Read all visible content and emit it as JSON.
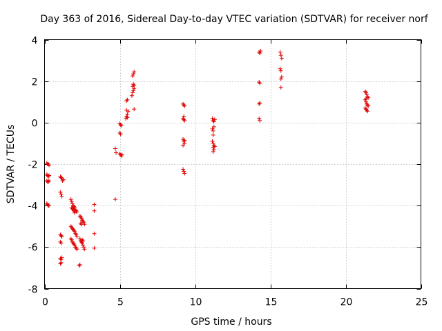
{
  "chart_data": {
    "type": "scatter",
    "title": "Day 363 of 2016, Sidereal Day-to-day VTEC variation (SDTVAR) for receiver norf",
    "xlabel": "GPS time / hours",
    "ylabel": "SDTVAR / TECUs",
    "xlim": [
      0,
      25
    ],
    "ylim": [
      -8,
      4
    ],
    "xticks": [
      0,
      5,
      10,
      15,
      20,
      25
    ],
    "xtick_labels": [
      "0",
      "5",
      "10",
      "15",
      "20",
      "25"
    ],
    "yticks": [
      -8,
      -6,
      -4,
      -2,
      0,
      2,
      4
    ],
    "ytick_labels": [
      "-8",
      "-6",
      "-4",
      "-2",
      "0",
      "2",
      "4"
    ],
    "grid": true,
    "marker": "+",
    "color": "#e00000",
    "series": [
      {
        "name": "SDTVAR",
        "points": [
          [
            0.15,
            -1.95
          ],
          [
            0.2,
            -2.0
          ],
          [
            0.25,
            -2.0
          ],
          [
            0.3,
            -2.05
          ],
          [
            0.15,
            -2.5
          ],
          [
            0.2,
            -2.55
          ],
          [
            0.25,
            -2.6
          ],
          [
            0.3,
            -2.55
          ],
          [
            0.15,
            -2.8
          ],
          [
            0.2,
            -2.85
          ],
          [
            0.25,
            -2.85
          ],
          [
            0.3,
            -2.8
          ],
          [
            0.15,
            -3.9
          ],
          [
            0.2,
            -3.95
          ],
          [
            0.25,
            -4.0
          ],
          [
            0.3,
            -4.0
          ],
          [
            1.05,
            -2.6
          ],
          [
            1.1,
            -2.65
          ],
          [
            1.15,
            -2.7
          ],
          [
            1.2,
            -2.8
          ],
          [
            1.25,
            -2.75
          ],
          [
            1.05,
            -3.35
          ],
          [
            1.1,
            -3.45
          ],
          [
            1.15,
            -3.55
          ],
          [
            1.05,
            -5.4
          ],
          [
            1.1,
            -5.45
          ],
          [
            1.15,
            -5.5
          ],
          [
            1.05,
            -5.75
          ],
          [
            1.1,
            -5.8
          ],
          [
            1.05,
            -6.55
          ],
          [
            1.1,
            -6.6
          ],
          [
            1.15,
            -6.5
          ],
          [
            1.05,
            -6.8
          ],
          [
            1.1,
            -6.75
          ],
          [
            1.75,
            -3.7
          ],
          [
            1.8,
            -3.8
          ],
          [
            1.85,
            -3.9
          ],
          [
            1.9,
            -4.0
          ],
          [
            1.95,
            -4.05
          ],
          [
            2.0,
            -4.1
          ],
          [
            2.05,
            -4.2
          ],
          [
            2.1,
            -4.25
          ],
          [
            2.15,
            -4.3
          ],
          [
            1.8,
            -4.1
          ],
          [
            1.85,
            -4.15
          ],
          [
            1.9,
            -4.2
          ],
          [
            1.95,
            -4.25
          ],
          [
            2.0,
            -4.35
          ],
          [
            1.75,
            -5.0
          ],
          [
            1.8,
            -5.05
          ],
          [
            1.85,
            -5.1
          ],
          [
            1.9,
            -5.15
          ],
          [
            1.95,
            -5.2
          ],
          [
            2.0,
            -5.25
          ],
          [
            2.05,
            -5.35
          ],
          [
            2.1,
            -5.4
          ],
          [
            2.15,
            -5.5
          ],
          [
            1.75,
            -5.6
          ],
          [
            1.8,
            -5.65
          ],
          [
            1.85,
            -5.75
          ],
          [
            1.9,
            -5.8
          ],
          [
            1.95,
            -5.85
          ],
          [
            2.0,
            -5.9
          ],
          [
            2.05,
            -6.0
          ],
          [
            2.1,
            -6.05
          ],
          [
            2.15,
            -6.1
          ],
          [
            2.3,
            -6.9
          ],
          [
            2.35,
            -6.85
          ],
          [
            2.35,
            -4.5
          ],
          [
            2.4,
            -4.55
          ],
          [
            2.45,
            -4.6
          ],
          [
            2.5,
            -4.7
          ],
          [
            2.55,
            -4.75
          ],
          [
            2.6,
            -4.8
          ],
          [
            2.65,
            -4.9
          ],
          [
            2.4,
            -4.85
          ],
          [
            2.45,
            -4.9
          ],
          [
            2.35,
            -5.6
          ],
          [
            2.4,
            -5.7
          ],
          [
            2.45,
            -5.75
          ],
          [
            2.5,
            -5.8
          ],
          [
            2.55,
            -5.9
          ],
          [
            2.6,
            -6.0
          ],
          [
            2.65,
            -6.1
          ],
          [
            2.5,
            -5.65
          ],
          [
            2.55,
            -5.7
          ],
          [
            3.3,
            -3.95
          ],
          [
            3.3,
            -4.25
          ],
          [
            3.3,
            -5.35
          ],
          [
            3.3,
            -6.05
          ],
          [
            4.7,
            -1.25
          ],
          [
            4.75,
            -1.45
          ],
          [
            4.7,
            -3.7
          ],
          [
            5.0,
            -1.5
          ],
          [
            5.05,
            -1.55
          ],
          [
            5.1,
            -1.6
          ],
          [
            5.15,
            -1.55
          ],
          [
            5.0,
            -0.05
          ],
          [
            5.05,
            -0.1
          ],
          [
            5.1,
            -0.15
          ],
          [
            5.0,
            -0.5
          ],
          [
            5.05,
            -0.55
          ],
          [
            5.4,
            0.2
          ],
          [
            5.45,
            0.3
          ],
          [
            5.5,
            0.4
          ],
          [
            5.55,
            0.55
          ],
          [
            5.45,
            0.6
          ],
          [
            5.5,
            0.25
          ],
          [
            5.45,
            1.05
          ],
          [
            5.5,
            1.1
          ],
          [
            5.8,
            1.3
          ],
          [
            5.85,
            1.45
          ],
          [
            5.9,
            1.55
          ],
          [
            5.95,
            1.65
          ],
          [
            5.85,
            1.75
          ],
          [
            5.9,
            1.85
          ],
          [
            5.95,
            1.8
          ],
          [
            5.85,
            2.25
          ],
          [
            5.9,
            2.35
          ],
          [
            5.95,
            2.45
          ],
          [
            5.95,
            0.65
          ],
          [
            9.2,
            0.9
          ],
          [
            9.25,
            0.85
          ],
          [
            9.3,
            0.8
          ],
          [
            9.2,
            0.2
          ],
          [
            9.25,
            0.15
          ],
          [
            9.3,
            0.1
          ],
          [
            9.25,
            0.3
          ],
          [
            9.2,
            -0.8
          ],
          [
            9.25,
            -0.9
          ],
          [
            9.3,
            -1.0
          ],
          [
            9.2,
            -1.1
          ],
          [
            9.3,
            -0.85
          ],
          [
            9.2,
            -2.25
          ],
          [
            9.25,
            -2.35
          ],
          [
            9.3,
            -2.45
          ],
          [
            11.15,
            0.2
          ],
          [
            11.2,
            0.1
          ],
          [
            11.25,
            0.05
          ],
          [
            11.3,
            0.15
          ],
          [
            11.15,
            -0.3
          ],
          [
            11.2,
            -0.4
          ],
          [
            11.25,
            -0.2
          ],
          [
            11.2,
            -0.6
          ],
          [
            11.15,
            -0.9
          ],
          [
            11.2,
            -1.0
          ],
          [
            11.25,
            -1.1
          ],
          [
            11.2,
            -1.2
          ],
          [
            11.25,
            -1.3
          ],
          [
            11.3,
            -1.15
          ],
          [
            11.2,
            -1.4
          ],
          [
            14.25,
            3.4
          ],
          [
            14.3,
            3.35
          ],
          [
            14.35,
            3.45
          ],
          [
            14.25,
            1.95
          ],
          [
            14.3,
            1.9
          ],
          [
            14.25,
            0.9
          ],
          [
            14.3,
            0.95
          ],
          [
            14.25,
            0.2
          ],
          [
            14.3,
            0.1
          ],
          [
            15.65,
            3.4
          ],
          [
            15.7,
            3.25
          ],
          [
            15.75,
            3.1
          ],
          [
            15.65,
            2.6
          ],
          [
            15.7,
            2.5
          ],
          [
            15.75,
            2.2
          ],
          [
            15.7,
            2.1
          ],
          [
            15.7,
            1.7
          ],
          [
            21.3,
            1.5
          ],
          [
            21.35,
            1.45
          ],
          [
            21.4,
            1.35
          ],
          [
            21.45,
            1.25
          ],
          [
            21.5,
            1.2
          ],
          [
            21.3,
            1.1
          ],
          [
            21.35,
            1.0
          ],
          [
            21.4,
            0.9
          ],
          [
            21.45,
            0.85
          ],
          [
            21.5,
            0.8
          ],
          [
            21.3,
            0.7
          ],
          [
            21.35,
            0.65
          ],
          [
            21.4,
            0.6
          ],
          [
            21.45,
            0.55
          ],
          [
            21.35,
            1.15
          ]
        ]
      }
    ]
  }
}
